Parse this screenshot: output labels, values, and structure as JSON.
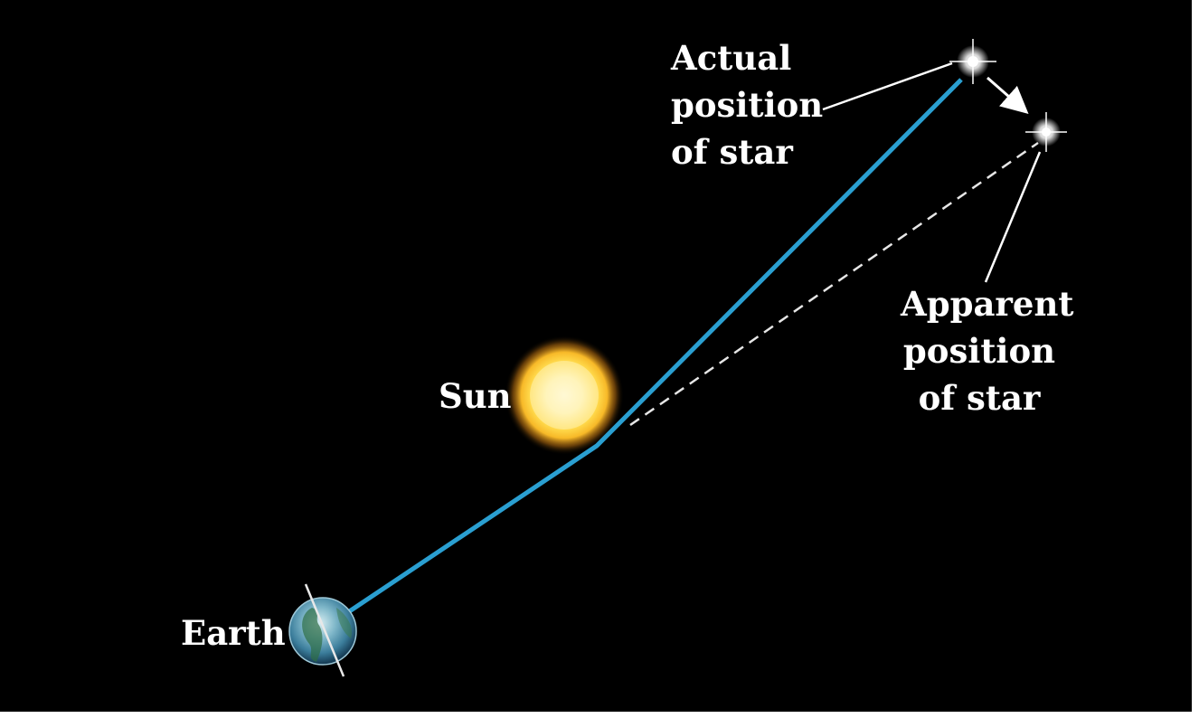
{
  "labels": {
    "actual": [
      "Actual",
      "position",
      "of star"
    ],
    "apparent": [
      "Apparent",
      "position",
      "of star"
    ],
    "sun": "Sun",
    "earth": "Earth"
  },
  "colors": {
    "background": "#000000",
    "light_path": "#2a9fd1",
    "apparent_line": "#e6e6e6",
    "sun_core": "#fff6c8",
    "sun_glow": "#f7b928",
    "text": "#ffffff"
  }
}
